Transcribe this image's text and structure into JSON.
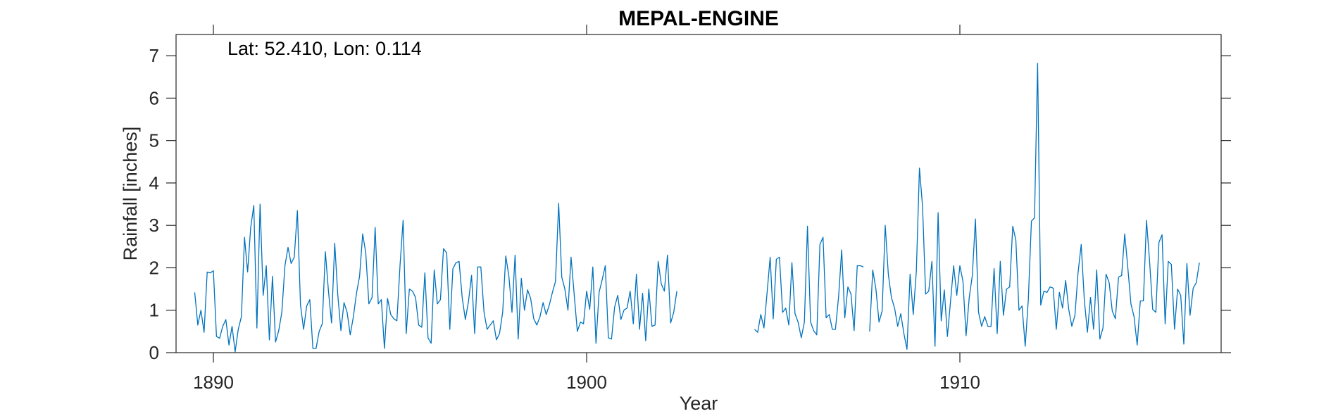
{
  "chart_data": {
    "type": "line",
    "title": "MEPAL-ENGINE",
    "annotation": "Lat: 52.410, Lon: 0.114",
    "xlabel": "Year",
    "ylabel": "Rainfall [inches]",
    "xlim": [
      1889,
      1917
    ],
    "ylim": [
      0,
      7.5
    ],
    "xticks": [
      1890,
      1900,
      1910
    ],
    "yticks": [
      0,
      1,
      2,
      3,
      4,
      5,
      6,
      7
    ],
    "grid": false,
    "line_color": "#0072BD",
    "series": [
      {
        "name": "",
        "segments": [
          {
            "start_year": 1889.5,
            "values": [
              1.42,
              0.65,
              1.0,
              0.48,
              1.9,
              1.88,
              1.93,
              0.38,
              0.34,
              0.62,
              0.78,
              0.18,
              0.62,
              0.02,
              0.55,
              0.85,
              2.72,
              1.9,
              2.95,
              3.47,
              0.58,
              3.5,
              1.35,
              2.05,
              0.3,
              1.8,
              0.25,
              0.52,
              0.95,
              2.05,
              2.48,
              2.1,
              2.25,
              3.35,
              1.12,
              0.55,
              1.1,
              1.25,
              0.1,
              0.1,
              0.5,
              0.68,
              2.38,
              1.45,
              0.7,
              2.58,
              1.35,
              0.52,
              1.18,
              0.95,
              0.42,
              0.85,
              1.4,
              1.8,
              2.8,
              2.35,
              1.15,
              1.3,
              2.95,
              1.15,
              1.25,
              0.1,
              1.28,
              0.9,
              0.8,
              0.75,
              2.05,
              3.12,
              0.45,
              1.5,
              1.45,
              1.3,
              0.65,
              0.6,
              1.88,
              0.35,
              0.22,
              1.95,
              1.15,
              1.25,
              2.45,
              2.35,
              0.55,
              1.98,
              2.12,
              2.15,
              1.3,
              0.78,
              1.2,
              1.82,
              0.45,
              2.02,
              2.02,
              0.95,
              0.55,
              0.65,
              0.75,
              0.3,
              0.45,
              0.95,
              2.28,
              1.8,
              0.95,
              2.3,
              0.32,
              1.75,
              1.0,
              1.48,
              1.28,
              0.8,
              0.65,
              0.85,
              1.18,
              0.9,
              1.12,
              1.42,
              1.68,
              3.52,
              1.78,
              1.5,
              1.0,
              2.25,
              1.38,
              0.5,
              0.72,
              0.68,
              1.45,
              1.02,
              2.02,
              0.22,
              1.42,
              1.72,
              2.05,
              0.35,
              0.32,
              1.08,
              1.35,
              0.78,
              1.0,
              1.05,
              1.45,
              0.68,
              1.85,
              0.55,
              1.4,
              0.28,
              1.5,
              0.62,
              0.65,
              2.15,
              1.62,
              1.45,
              2.3,
              0.7,
              0.95,
              1.45
            ]
          },
          {
            "start_year": 1904.5,
            "values": [
              0.55,
              0.48,
              0.9,
              0.58,
              1.4,
              2.25,
              0.8,
              2.2,
              2.25,
              0.95,
              1.05,
              0.65,
              2.12,
              0.92,
              0.72,
              0.35,
              0.72,
              2.98,
              0.72,
              0.52,
              0.42,
              2.55,
              2.72,
              0.82,
              0.9,
              0.55,
              0.55,
              1.32,
              2.42,
              0.82,
              1.55,
              1.38,
              0.52,
              2.05,
              2.05,
              2.02,
              null,
              0.5,
              1.95,
              1.5,
              0.72,
              0.98,
              3.0,
              1.85,
              1.3,
              1.05,
              0.62,
              0.92,
              0.45,
              0.08,
              1.85,
              0.9,
              1.92,
              4.35,
              3.45,
              1.38,
              1.45,
              2.15,
              0.15,
              3.3,
              0.75,
              1.48,
              0.38,
              1.22,
              2.05,
              1.35,
              2.05,
              1.68,
              0.4,
              1.3,
              1.82,
              3.15,
              0.95,
              0.62,
              0.85,
              0.62,
              0.62,
              1.98,
              0.45,
              2.15,
              0.88,
              1.5,
              1.55,
              2.98,
              2.65,
              1.0,
              1.1,
              0.15,
              1.25,
              3.1,
              3.18,
              6.82,
              1.12,
              1.45,
              1.42,
              1.55,
              1.52,
              0.55,
              1.42,
              1.05,
              1.7,
              1.02,
              0.62,
              0.88,
              1.88,
              2.55,
              1.25,
              0.48,
              1.3,
              0.55,
              1.95,
              0.32,
              0.58,
              1.85,
              1.65,
              0.98,
              0.8,
              1.78,
              1.82,
              2.8,
              2.0,
              1.15,
              0.85,
              0.18,
              1.22,
              1.22,
              3.12,
              2.15,
              1.02,
              0.95,
              2.6,
              2.78,
              0.68,
              2.15,
              2.08,
              0.55,
              1.5,
              1.35,
              0.2,
              2.1,
              0.88,
              1.52,
              1.65,
              2.12
            ]
          }
        ]
      }
    ]
  }
}
